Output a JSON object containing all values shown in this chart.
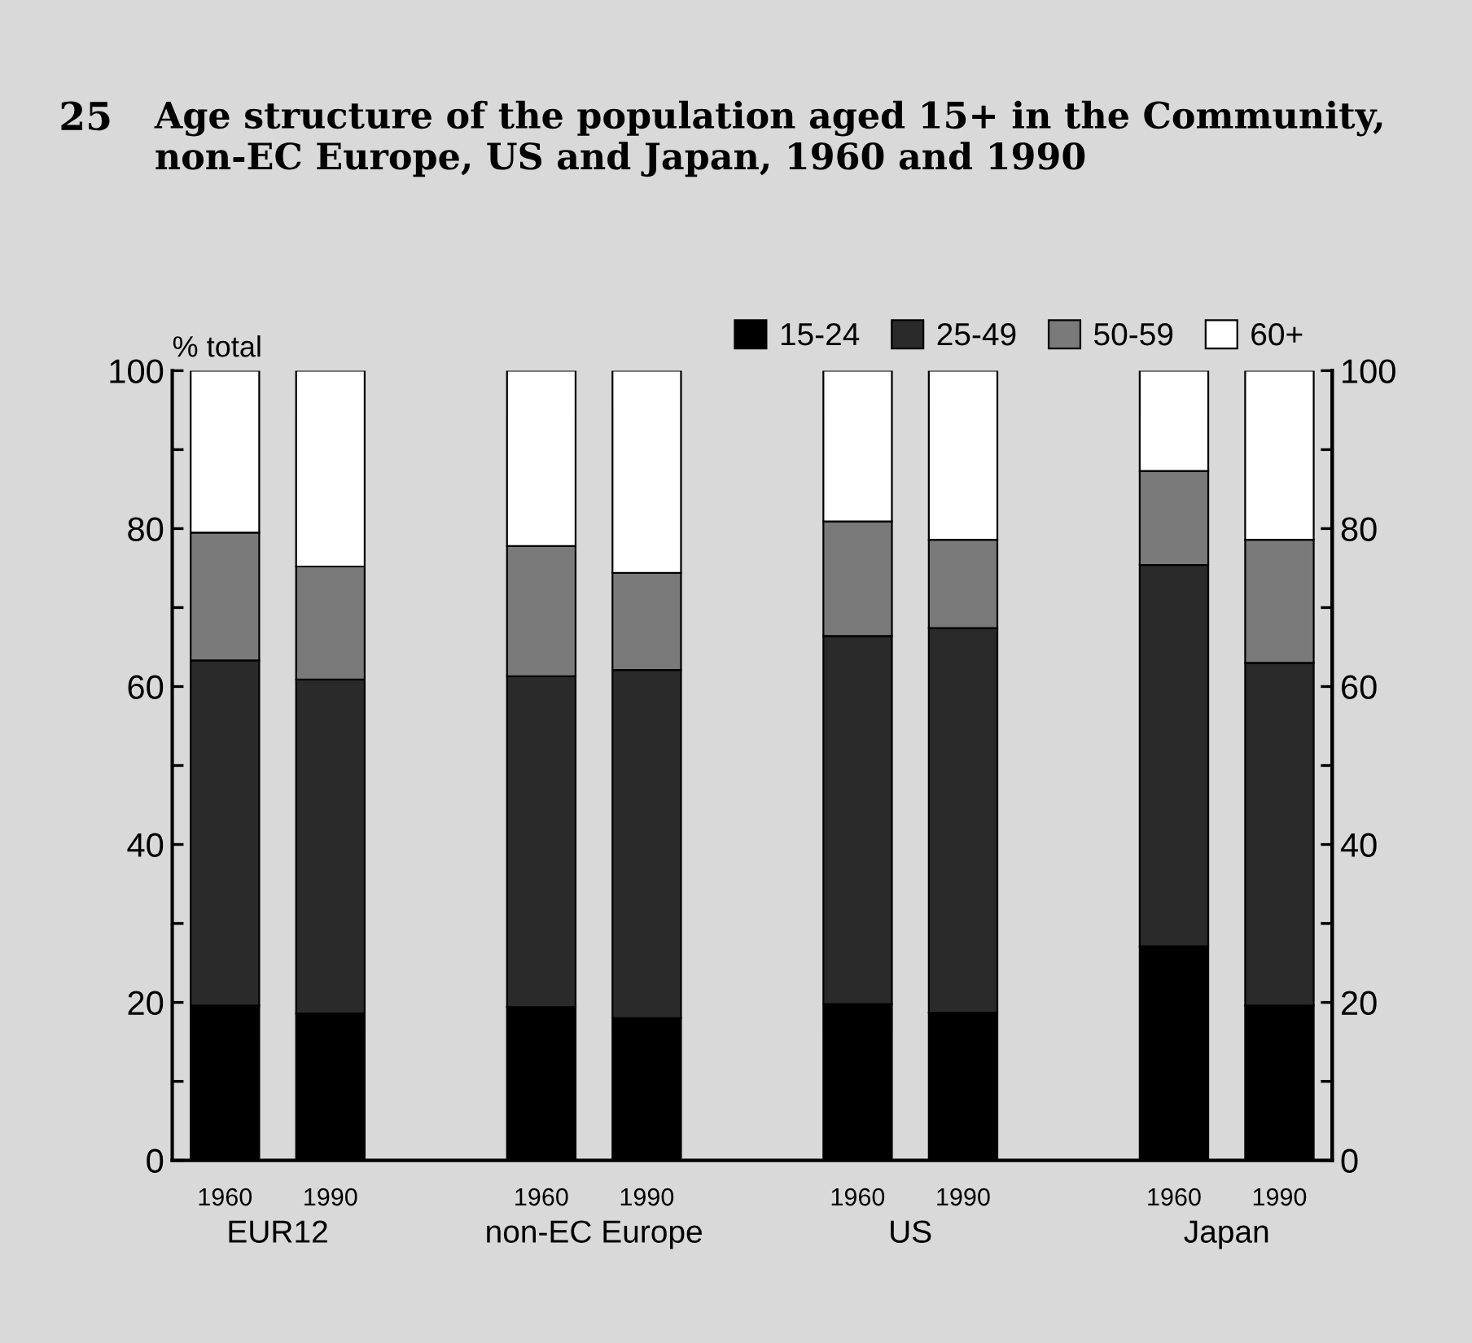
{
  "chart_data": {
    "type": "bar",
    "stacked": true,
    "title": "Age structure of the population aged 15+ in the Community, non-EC Europe, US and Japan, 1960 and 1990",
    "ylabel": "% total",
    "categories": [
      "1960",
      "1990",
      null,
      "1960",
      "1990",
      null,
      "1960",
      "1990",
      null,
      "1960",
      "1990"
    ],
    "series": [
      {
        "name": "15-24",
        "color": "#000000",
        "values": [
          19.6,
          18.6,
          null,
          19.4,
          18.0,
          null,
          19.8,
          18.7,
          null,
          27.1,
          19.6
        ]
      },
      {
        "name": "25-49",
        "color": "#2a2a2a",
        "values": [
          43.7,
          42.3,
          null,
          41.9,
          44.1,
          null,
          46.6,
          48.7,
          null,
          48.3,
          43.4
        ]
      },
      {
        "name": "50-59",
        "color": "#7a7a7a",
        "values": [
          16.2,
          14.3,
          null,
          16.5,
          12.3,
          null,
          14.5,
          11.2,
          null,
          11.9,
          15.6
        ]
      },
      {
        "name": "60+",
        "color": "#ffffff",
        "values": [
          20.5,
          24.8,
          null,
          22.2,
          25.6,
          null,
          19.1,
          21.4,
          null,
          12.7,
          21.4
        ]
      }
    ],
    "ylim": [
      0,
      100
    ],
    "yticks": [
      0,
      {
        "value": 10,
        "label": null
      },
      20,
      {
        "value": 30,
        "label": null
      },
      40,
      {
        "value": 50,
        "label": null
      },
      60,
      {
        "value": 70,
        "label": null
      },
      80,
      {
        "value": 90,
        "label": null
      },
      100
    ],
    "y2lim": [
      0,
      100
    ],
    "y2ticks": [
      0,
      {
        "value": 10,
        "label": null
      },
      20,
      {
        "value": 30,
        "label": null
      },
      40,
      {
        "value": 50,
        "label": null
      },
      60,
      {
        "value": 70,
        "label": null
      },
      80,
      {
        "value": 90,
        "label": null
      },
      100
    ],
    "annotations": [
      "25",
      "EUR12",
      "non-EC Europe",
      "US",
      "Japan"
    ],
    "grid": false,
    "legend": "top right"
  }
}
